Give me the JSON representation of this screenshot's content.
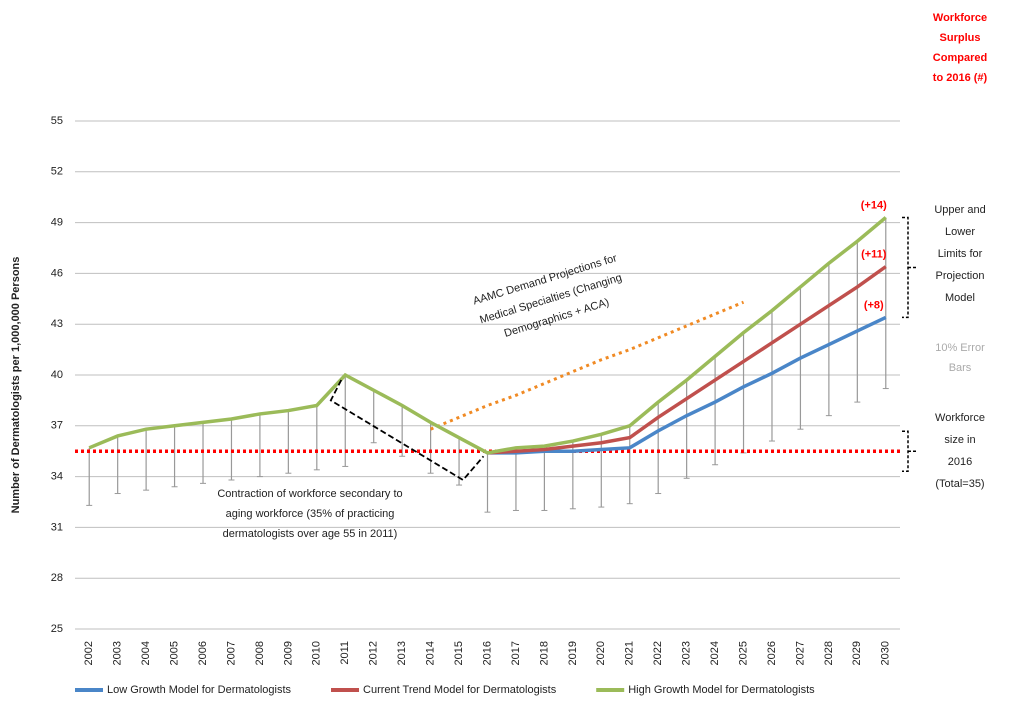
{
  "chart_data": {
    "type": "line",
    "y_label": "Number of Dermatologists per 1,000,000 Persons",
    "categories": [
      "2002",
      "2003",
      "2004",
      "2005",
      "2006",
      "2007",
      "2008",
      "2009",
      "2010",
      "2011",
      "2012",
      "2013",
      "2014",
      "2015",
      "2016",
      "2017",
      "2018",
      "2019",
      "2020",
      "2021",
      "2022",
      "2023",
      "2024",
      "2025",
      "2026",
      "2027",
      "2028",
      "2029",
      "2030"
    ],
    "series": [
      {
        "name": "Low Growth Model for Dermatologists",
        "color": "#4a86c8",
        "values": [
          null,
          null,
          null,
          null,
          null,
          null,
          null,
          null,
          null,
          null,
          null,
          null,
          null,
          null,
          35.4,
          35.4,
          35.5,
          35.5,
          35.6,
          35.7,
          36.7,
          37.6,
          38.4,
          39.3,
          40.1,
          41.0,
          41.8,
          42.6,
          43.4
        ]
      },
      {
        "name": "Current Trend Model for Dermatologists",
        "color": "#c0504d",
        "values": [
          null,
          null,
          null,
          null,
          null,
          null,
          null,
          null,
          null,
          null,
          null,
          null,
          null,
          null,
          35.4,
          35.5,
          35.6,
          35.8,
          36.0,
          36.3,
          37.5,
          38.6,
          39.7,
          40.8,
          41.9,
          43.0,
          44.1,
          45.2,
          46.4
        ]
      },
      {
        "name": "High Growth Model for Dermatologists",
        "color": "#9bbb59",
        "values": [
          35.7,
          36.4,
          36.8,
          37.0,
          37.2,
          37.4,
          37.7,
          37.9,
          38.2,
          40.0,
          39.1,
          38.2,
          37.2,
          36.3,
          35.4,
          35.7,
          35.8,
          36.1,
          36.5,
          37.0,
          38.4,
          39.7,
          41.1,
          42.5,
          43.8,
          45.2,
          46.6,
          47.9,
          49.3
        ]
      }
    ],
    "error_bars": {
      "color": "#999999",
      "low": [
        32.3,
        33.0,
        33.2,
        33.4,
        33.6,
        33.8,
        34.0,
        34.2,
        34.4,
        34.6,
        36.0,
        35.2,
        34.2,
        33.5,
        31.9,
        32.0,
        32.0,
        32.1,
        32.2,
        32.4,
        33.0,
        33.9,
        34.7,
        35.4,
        36.1,
        36.8,
        37.6,
        38.4,
        39.2
      ],
      "high": [
        35.7,
        36.4,
        36.8,
        37.0,
        37.2,
        37.4,
        37.7,
        37.9,
        38.2,
        40.0,
        39.1,
        38.2,
        37.2,
        36.3,
        35.4,
        35.7,
        35.8,
        36.1,
        36.5,
        37.0,
        38.4,
        39.7,
        41.1,
        42.5,
        43.8,
        45.2,
        46.6,
        47.9,
        49.3
      ]
    },
    "reference_line": {
      "value": 35.5,
      "color": "#ff0000"
    },
    "demand_projection": {
      "color": "#f08a24",
      "values": [
        null,
        null,
        null,
        null,
        null,
        null,
        null,
        null,
        null,
        null,
        null,
        null,
        36.8,
        37.5,
        38.2,
        38.8,
        39.5,
        40.2,
        40.9,
        41.5,
        42.2,
        42.9,
        43.6,
        44.3,
        null,
        null,
        null,
        null,
        null
      ]
    },
    "ylim": [
      25,
      55
    ],
    "yticks": [
      25,
      28,
      31,
      34,
      37,
      40,
      43,
      46,
      49,
      52,
      55
    ],
    "grid": true,
    "surplus_labels": [
      "(+8)",
      "(+11)",
      "(+14)"
    ],
    "surplus_title": [
      "Workforce",
      "Surplus",
      "Compared",
      "to 2016 (#)"
    ],
    "limits_note": [
      "Upper and",
      "Lower",
      "Limits for",
      "Projection",
      "Model"
    ],
    "error_note": [
      "10% Error",
      "Bars"
    ],
    "size_note": [
      "Workforce",
      "size in",
      "2016",
      "(Total=35)"
    ],
    "demand_note": [
      "AAMC Demand Projections for",
      "Medical Specialties (Changing",
      "Demographics + ACA)"
    ],
    "contraction_note": [
      "Contraction of workforce secondary to",
      "aging workforce (35% of practicing",
      "dermatologists over age 55 in 2011)"
    ]
  }
}
